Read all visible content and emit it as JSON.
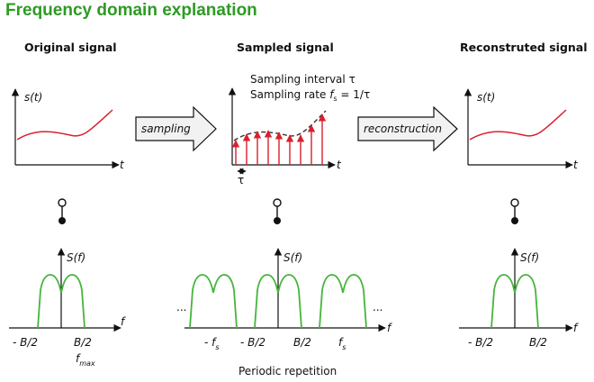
{
  "title": "Frequency domain explanation",
  "headings": {
    "original": "Original signal",
    "sampled": "Sampled signal",
    "reconstructed": "Reconstruted signal"
  },
  "arrows": {
    "sampling": "sampling",
    "reconstruction": "reconstruction"
  },
  "sampling_info": {
    "interval_label": "Sampling interval",
    "interval_symbol": "τ",
    "rate_label": "Sampling rate",
    "rate_symbol": "f",
    "rate_subscript": "s",
    "rate_formula": "= 1/τ"
  },
  "time_axis": {
    "ylabel": "s(t)",
    "xlabel": "t",
    "tau_label": "τ"
  },
  "freq_axis": {
    "ylabel": "S(f)",
    "xlabel": "f",
    "neg_b2": "- B/2",
    "pos_b2": "B/2",
    "fmax_base": "f",
    "fmax_sub": "max",
    "neg_fs": "- f",
    "pos_fs": "f",
    "fs_sub": "s",
    "ellipsis": "..."
  },
  "caption": "Periodic repetition",
  "colors": {
    "title": "#2e9a24",
    "signal": "#d9202e",
    "spectrum": "#45b53a",
    "axis": "#111111",
    "arrow_fill": "#f2f2f2"
  }
}
